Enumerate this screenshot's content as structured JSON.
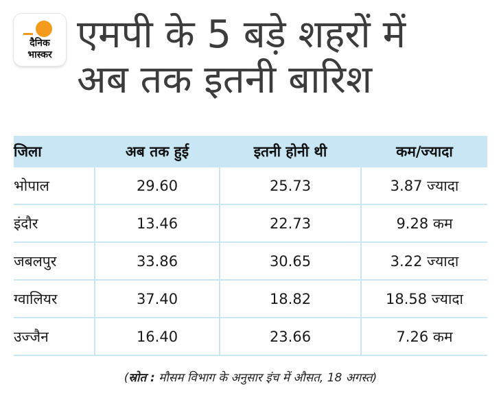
{
  "logo": {
    "line1": "दैनिक",
    "line2": "भास्कर",
    "accent_color": "#f49a1c"
  },
  "title": {
    "line1": "एमपी के 5 बड़े शहरों में",
    "line2": "अब तक इतनी बारिश"
  },
  "table": {
    "headers": [
      "जिला",
      "अब तक हुई",
      "इतनी होनी थी",
      "कम/ज्यादा"
    ],
    "rows": [
      [
        "भोपाल",
        "29.60",
        "25.73",
        "3.87 ज्यादा"
      ],
      [
        "इंदौर",
        "13.46",
        "22.73",
        "9.28 कम"
      ],
      [
        "जबलपुर",
        "33.86",
        "30.65",
        "3.22 ज्यादा"
      ],
      [
        "ग्वालियर",
        "37.40",
        "18.82",
        "18.58 ज्यादा"
      ],
      [
        "उज्जैन",
        "16.40",
        "23.66",
        "7.26 कम"
      ]
    ],
    "header_color": "#c8e6f4"
  },
  "footnote": {
    "label": "स्रोत :",
    "text": "मौसम विभाग के अनुसार इंच में औसत, 18 अगस्त"
  }
}
